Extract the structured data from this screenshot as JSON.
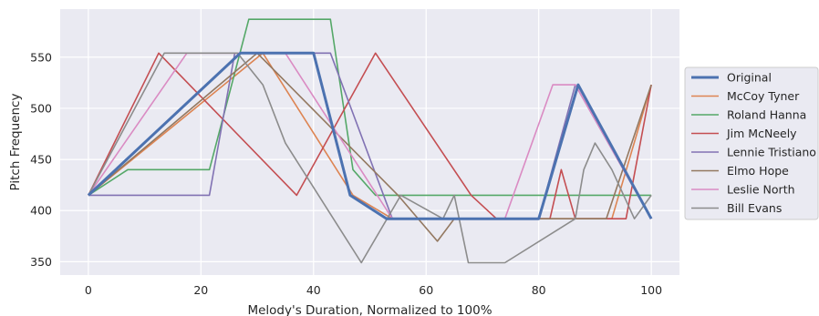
{
  "chart_data": {
    "type": "line",
    "title": "",
    "xlabel": "Melody's Duration, Normalized to 100%",
    "ylabel": "Pitch Frequency",
    "xlim": [
      -5,
      105
    ],
    "ylim": [
      337,
      597
    ],
    "xticks": [
      0,
      20,
      40,
      60,
      80,
      100
    ],
    "yticks": [
      350,
      400,
      450,
      500,
      550
    ],
    "grid": true,
    "legend_position": "right",
    "series": [
      {
        "name": "Original",
        "color": "#4c72b0",
        "highlight": true,
        "x": [
          0,
          27,
          40,
          46.5,
          53,
          80,
          87,
          100
        ],
        "y": [
          415,
          554,
          554,
          415,
          392,
          392,
          523,
          392
        ]
      },
      {
        "name": "McCoy Tyner",
        "color": "#dd8452",
        "x": [
          0,
          31,
          47,
          54,
          73,
          93,
          100
        ],
        "y": [
          415,
          554,
          415,
          392,
          392,
          392,
          523
        ]
      },
      {
        "name": "Roland Hanna",
        "color": "#55a868",
        "x": [
          0,
          7,
          21.5,
          28.5,
          43,
          47,
          51,
          100
        ],
        "y": [
          415,
          440,
          440,
          587,
          587,
          440,
          415,
          415
        ]
      },
      {
        "name": "Jim McNeely",
        "color": "#c44e52",
        "x": [
          0,
          12.5,
          37,
          51,
          68,
          72.5,
          82,
          84,
          86.5,
          95.5,
          100
        ],
        "y": [
          415,
          554,
          415,
          554,
          415,
          392,
          392,
          440,
          392,
          392,
          523
        ]
      },
      {
        "name": "Lennie Tristiano",
        "color": "#8172b3",
        "x": [
          0,
          21.5,
          26,
          40.5,
          43,
          54,
          73,
          80,
          86.5,
          100
        ],
        "y": [
          415,
          415,
          554,
          554,
          554,
          392,
          392,
          392,
          523,
          392
        ]
      },
      {
        "name": "Elmo Hope",
        "color": "#937860",
        "x": [
          0,
          30,
          55,
          62,
          65,
          90,
          92,
          100
        ],
        "y": [
          415,
          554,
          415,
          370,
          392,
          392,
          392,
          523
        ]
      },
      {
        "name": "Leslie North",
        "color": "#da8bc3",
        "x": [
          0,
          17.5,
          35,
          54,
          74,
          82.5,
          86.5,
          100
        ],
        "y": [
          415,
          554,
          554,
          392,
          392,
          523,
          523,
          392
        ]
      },
      {
        "name": "Bill Evans",
        "color": "#8c8c8c",
        "x": [
          0,
          13.5,
          26.5,
          31,
          35,
          48.5,
          55.5,
          63,
          65,
          67.5,
          74,
          86.5,
          88,
          90,
          93,
          97,
          100
        ],
        "y": [
          415,
          554,
          554,
          523,
          466,
          349,
          415,
          392,
          415,
          349,
          349,
          392,
          440,
          466,
          440,
          392,
          415
        ]
      }
    ]
  }
}
